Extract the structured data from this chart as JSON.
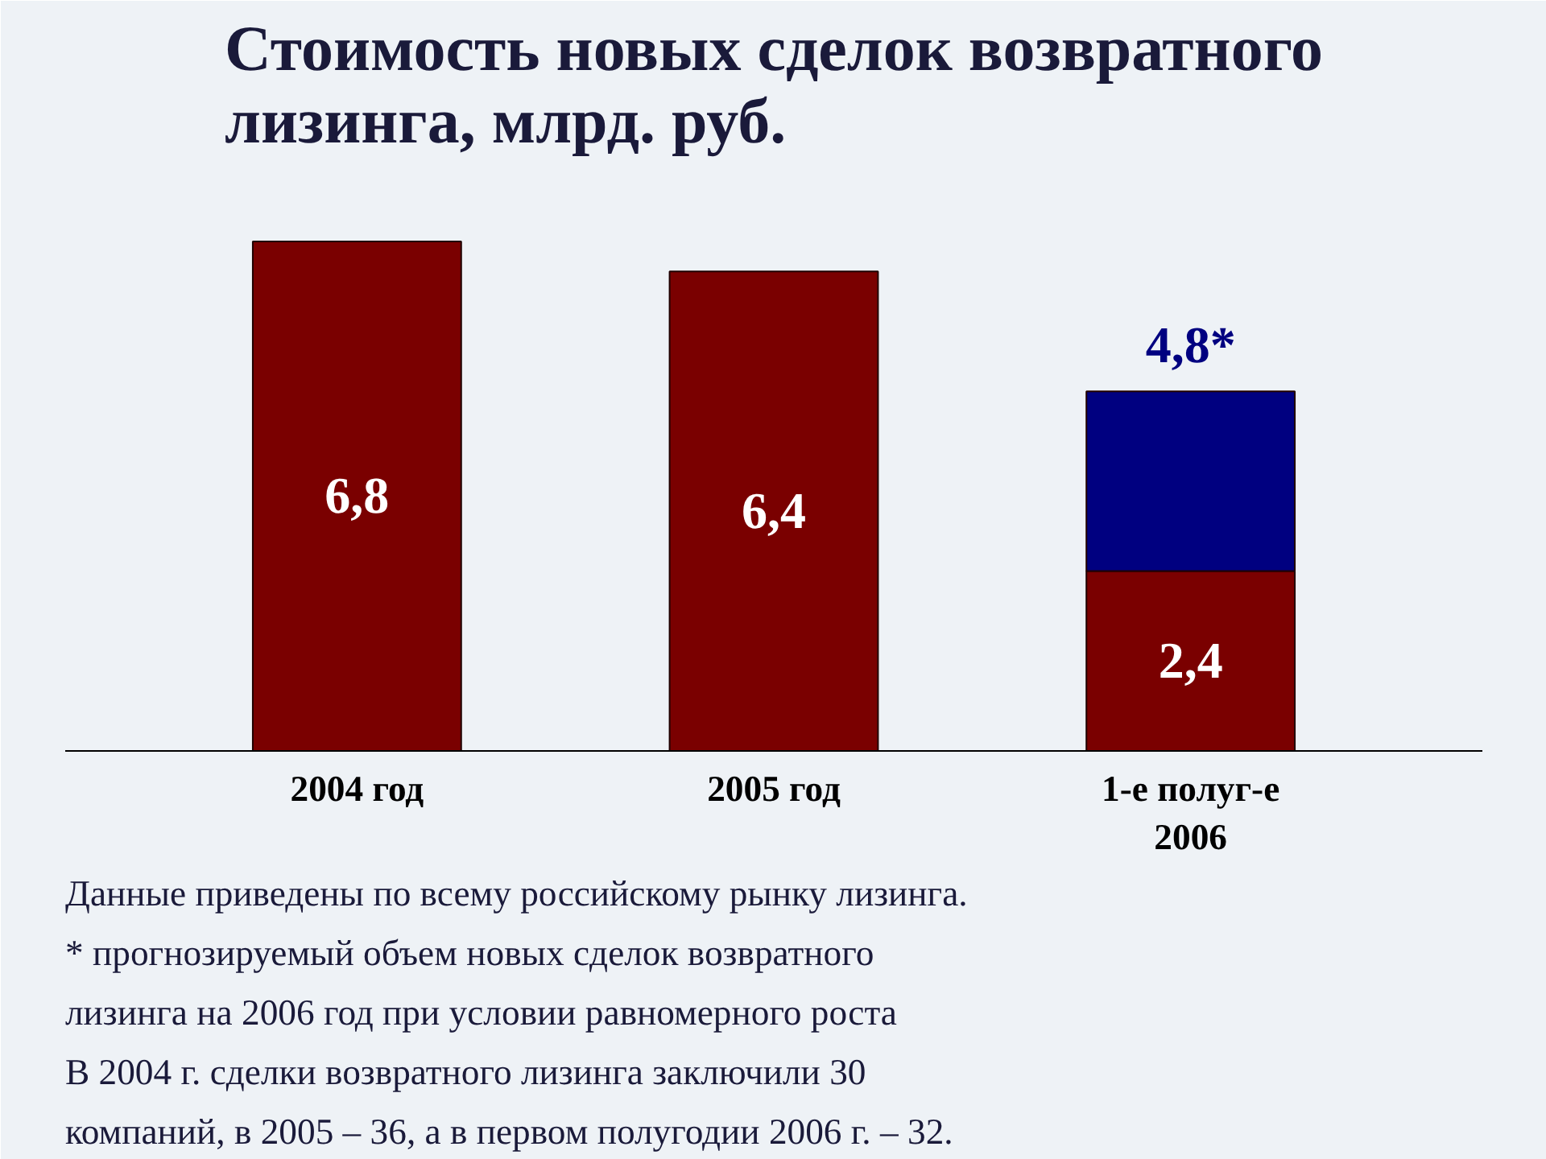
{
  "chart_data": {
    "type": "bar",
    "title": "Стоимость новых сделок возвратного\nлизинга, млрд. руб.",
    "categories": [
      "2004 год",
      "2005 год",
      "1-е полуг-е\n2006"
    ],
    "stacked": true,
    "series": [
      {
        "color": "#7a0000",
        "values": [
          6.8,
          6.4,
          2.4
        ],
        "value_labels": [
          "6,8",
          "6,4",
          "2,4"
        ]
      },
      {
        "color": "#000080",
        "values": [
          null,
          null,
          2.4
        ]
      }
    ],
    "totals": [
      null,
      null,
      "4,8*"
    ],
    "grid": false,
    "annotations": [
      "Данные приведены по всему российскому рынку лизинга.",
      "* прогнозируемый объем новых сделок возвратного",
      "лизинга на 2006 год при условии равномерного роста",
      "В 2004 г. сделки возвратного лизинга заключили 30",
      "компаний, в 2005 – 36, а в первом полугодии 2006 г. – 32."
    ]
  }
}
